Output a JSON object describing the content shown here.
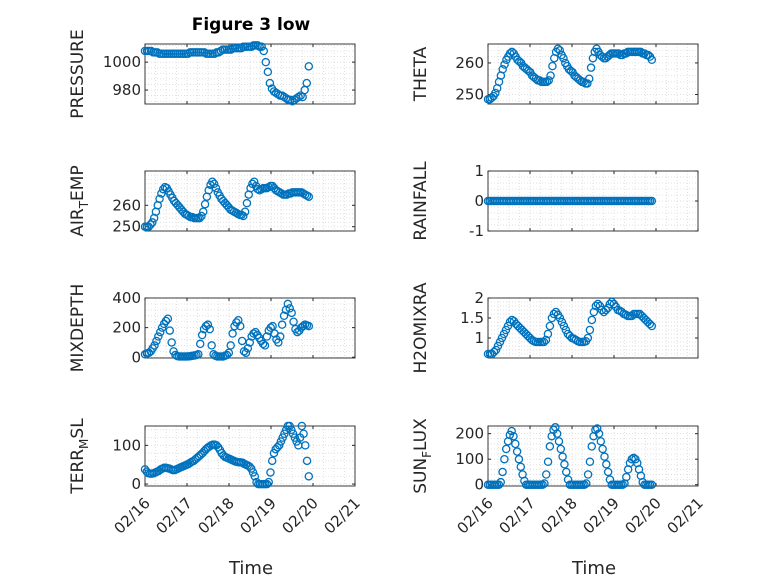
{
  "title": "Figure 3 low",
  "xlabel": "Time",
  "x_tick_labels": [
    "02/16",
    "02/17",
    "02/18",
    "02/19",
    "02/20",
    "02/21"
  ],
  "colors": {
    "marker": "#0072bd",
    "axis": "#262626",
    "grid": "#d6d6d6"
  },
  "chart_data": [
    {
      "type": "scatter",
      "id": "pressure",
      "ylabel": "PRESSURE",
      "ylim": [
        970,
        1013
      ],
      "yticks": [
        980,
        1000
      ],
      "yticklabels": [
        "980",
        "1000"
      ],
      "xlim": [
        16,
        21
      ],
      "x_range": [
        16,
        19.9
      ],
      "values": [
        1008,
        1008,
        1008,
        1008,
        1007,
        1007,
        1007,
        1006,
        1006,
        1006,
        1006,
        1006,
        1006,
        1006,
        1006,
        1006,
        1006,
        1006,
        1006,
        1006,
        1006,
        1006,
        1007,
        1007,
        1007,
        1007,
        1007,
        1007,
        1007,
        1007,
        1006,
        1006,
        1006,
        1006,
        1006,
        1007,
        1007,
        1008,
        1009,
        1009,
        1009,
        1009,
        1009,
        1010,
        1010,
        1010,
        1010,
        1010,
        1011,
        1011,
        1011,
        1011,
        1011,
        1012,
        1012,
        1012,
        1011,
        1011,
        1008,
        1000,
        993,
        985,
        981,
        979,
        978,
        977,
        976,
        976,
        975,
        974,
        973,
        973,
        972,
        973,
        974,
        975,
        976,
        975,
        980,
        985,
        997
      ]
    },
    {
      "type": "scatter",
      "id": "theta",
      "ylabel": "THETA",
      "ylim": [
        247,
        266
      ],
      "yticks": [
        250,
        260
      ],
      "yticklabels": [
        "250",
        "260"
      ],
      "xlim": [
        16,
        21
      ],
      "x_range": [
        16,
        19.9
      ],
      "values": [
        248.5,
        248.5,
        249,
        249.5,
        250.5,
        252,
        254,
        256,
        258,
        259.5,
        261,
        262,
        263,
        263.5,
        263,
        262,
        261,
        260.5,
        260,
        259,
        258.5,
        258,
        257.5,
        257,
        256,
        255.5,
        255,
        254.5,
        254.5,
        254,
        254,
        254,
        254,
        254.5,
        256,
        259,
        261.5,
        263.5,
        264.5,
        264,
        262.5,
        261.5,
        260,
        259,
        258,
        257.5,
        257,
        256,
        255.5,
        255,
        254.5,
        254,
        254,
        253.5,
        253.5,
        255,
        258.5,
        261.5,
        263.5,
        264.5,
        263.5,
        262.5,
        262,
        261.5,
        261.5,
        262,
        262.5,
        263,
        263,
        263,
        263,
        263,
        262.5,
        262.5,
        263,
        263,
        263.5,
        263.5,
        263.5,
        263.5,
        263.5,
        263.5,
        263.5,
        263.5,
        263,
        263,
        262.5,
        262.5,
        262,
        261
      ]
    },
    {
      "type": "scatter",
      "id": "air_temp",
      "ylabel": "AIR_TEMP",
      "ylim": [
        248,
        276
      ],
      "yticks": [
        250,
        260
      ],
      "yticklabels": [
        "250",
        "260"
      ],
      "xlim": [
        16,
        21
      ],
      "x_range": [
        16,
        19.9
      ],
      "values": [
        250,
        250,
        250,
        251,
        252,
        254,
        257,
        260,
        263,
        265.5,
        267.5,
        268.5,
        268,
        266.5,
        265,
        263.5,
        262,
        261,
        260,
        259,
        258,
        257,
        256,
        255.5,
        255,
        254.5,
        254.5,
        254,
        254,
        254,
        254,
        255,
        257,
        260.5,
        264,
        267,
        269.5,
        271,
        270,
        268,
        266,
        264.5,
        263,
        262,
        261,
        260,
        259,
        258,
        257.5,
        257,
        256.5,
        256,
        255.5,
        255.5,
        255,
        257,
        261,
        265,
        268,
        270,
        271,
        269,
        267.5,
        267,
        267.5,
        268,
        268,
        268,
        268.5,
        269,
        269,
        268,
        267,
        266.5,
        266,
        265.5,
        265,
        265,
        265,
        265.5,
        265.5,
        266,
        266,
        266,
        266,
        266,
        266,
        265.5,
        265,
        264.5,
        264
      ]
    },
    {
      "type": "scatter",
      "id": "rainfall",
      "ylabel": "RAINFALL",
      "ylim": [
        -1,
        1
      ],
      "yticks": [
        -1,
        0,
        1
      ],
      "yticklabels": [
        "-1",
        "0",
        "1"
      ],
      "xlim": [
        16,
        21
      ],
      "x_range": [
        16,
        19.9
      ],
      "values": [
        0,
        0,
        0,
        0,
        0,
        0,
        0,
        0,
        0,
        0,
        0,
        0,
        0,
        0,
        0,
        0,
        0,
        0,
        0,
        0,
        0,
        0,
        0,
        0,
        0,
        0,
        0,
        0,
        0,
        0,
        0,
        0,
        0,
        0,
        0,
        0,
        0,
        0,
        0,
        0,
        0,
        0,
        0,
        0,
        0,
        0,
        0,
        0,
        0,
        0,
        0,
        0,
        0,
        0,
        0,
        0,
        0,
        0,
        0,
        0,
        0,
        0,
        0,
        0,
        0,
        0,
        0,
        0,
        0,
        0,
        0,
        0,
        0,
        0,
        0,
        0,
        0,
        0,
        0,
        0,
        0,
        0,
        0,
        0,
        0,
        0,
        0,
        0,
        0,
        0,
        0,
        0,
        0,
        0
      ]
    },
    {
      "type": "scatter",
      "id": "mixdepth",
      "ylabel": "MIXDEPTH",
      "ylim": [
        -5,
        400
      ],
      "yticks": [
        0,
        200,
        400
      ],
      "yticklabels": [
        "0",
        "200",
        "400"
      ],
      "xlim": [
        16,
        21
      ],
      "x_range": [
        16,
        19.9
      ],
      "values": [
        20,
        25,
        30,
        40,
        60,
        80,
        110,
        140,
        170,
        200,
        225,
        245,
        260,
        180,
        100,
        40,
        15,
        8,
        5,
        5,
        5,
        5,
        5,
        6,
        8,
        10,
        12,
        15,
        20,
        90,
        150,
        190,
        210,
        220,
        190,
        80,
        20,
        10,
        5,
        5,
        5,
        5,
        10,
        15,
        30,
        80,
        160,
        210,
        235,
        250,
        210,
        110,
        40,
        30,
        60,
        100,
        140,
        160,
        170,
        150,
        130,
        110,
        90,
        80,
        140,
        180,
        200,
        210,
        160,
        120,
        100,
        140,
        220,
        280,
        320,
        360,
        330,
        300,
        240,
        190,
        170,
        180,
        200,
        210,
        220,
        215,
        210
      ]
    },
    {
      "type": "scatter",
      "id": "h2omixra",
      "ylabel": "H2OMIXRA",
      "ylim": [
        0.5,
        2
      ],
      "yticks": [
        1,
        1.5,
        2
      ],
      "yticklabels": [
        "1",
        "1.5",
        "2"
      ],
      "xlim": [
        16,
        21
      ],
      "x_range": [
        16,
        19.9
      ],
      "values": [
        0.6,
        0.6,
        0.6,
        0.65,
        0.7,
        0.8,
        0.9,
        1.0,
        1.1,
        1.2,
        1.3,
        1.4,
        1.45,
        1.42,
        1.35,
        1.3,
        1.25,
        1.2,
        1.15,
        1.1,
        1.05,
        1.0,
        0.95,
        0.92,
        0.9,
        0.9,
        0.9,
        0.9,
        0.9,
        0.95,
        1.1,
        1.3,
        1.5,
        1.6,
        1.65,
        1.58,
        1.5,
        1.4,
        1.3,
        1.2,
        1.1,
        1.05,
        1.0,
        0.98,
        0.95,
        0.92,
        0.9,
        0.9,
        0.9,
        0.92,
        1.0,
        1.2,
        1.45,
        1.65,
        1.8,
        1.85,
        1.8,
        1.7,
        1.65,
        1.7,
        1.75,
        1.85,
        1.9,
        1.85,
        1.78,
        1.7,
        1.68,
        1.65,
        1.6,
        1.58,
        1.55,
        1.55,
        1.55,
        1.6,
        1.6,
        1.6,
        1.6,
        1.55,
        1.5,
        1.45,
        1.4,
        1.35,
        1.3
      ]
    },
    {
      "type": "scatter",
      "id": "terr_msl",
      "ylabel": "TERR_MSL",
      "ylim": [
        -5,
        150
      ],
      "yticks": [
        0,
        100
      ],
      "yticklabels": [
        "0",
        "100"
      ],
      "xlim": [
        16,
        21
      ],
      "x_range": [
        16,
        19.9
      ],
      "values": [
        38,
        32,
        28,
        27,
        27,
        28,
        30,
        32,
        34,
        38,
        40,
        42,
        42,
        41,
        40,
        38,
        36,
        36,
        38,
        40,
        42,
        44,
        46,
        48,
        50,
        52,
        55,
        58,
        60,
        64,
        68,
        72,
        76,
        80,
        85,
        90,
        94,
        97,
        100,
        102,
        102,
        100,
        95,
        88,
        80,
        74,
        70,
        68,
        66,
        64,
        62,
        60,
        58,
        57,
        56,
        56,
        55,
        52,
        50,
        48,
        45,
        40,
        30,
        20,
        5,
        0,
        0,
        0,
        0,
        0,
        0,
        5,
        30,
        60,
        80,
        90,
        95,
        100,
        110,
        120,
        130,
        140,
        150,
        150,
        140,
        130,
        120,
        110,
        100,
        120,
        150,
        130,
        100,
        60,
        20
      ]
    },
    {
      "type": "scatter",
      "id": "sun_flux",
      "ylabel": "SUN_FLUX",
      "ylim": [
        -5,
        230
      ],
      "yticks": [
        0,
        100,
        200
      ],
      "yticklabels": [
        "0",
        "100",
        "200"
      ],
      "xlim": [
        16,
        21
      ],
      "x_range": [
        16,
        19.9
      ],
      "values": [
        0,
        0,
        0,
        0,
        0,
        0,
        0,
        10,
        50,
        100,
        140,
        170,
        195,
        210,
        190,
        160,
        130,
        100,
        70,
        40,
        15,
        0,
        0,
        0,
        0,
        0,
        0,
        0,
        0,
        0,
        0,
        5,
        40,
        90,
        150,
        190,
        215,
        225,
        200,
        170,
        140,
        110,
        80,
        50,
        20,
        0,
        0,
        0,
        0,
        0,
        0,
        0,
        0,
        0,
        5,
        40,
        90,
        150,
        190,
        215,
        220,
        200,
        170,
        140,
        110,
        80,
        50,
        20,
        0,
        0,
        0,
        0,
        0,
        0,
        0,
        5,
        30,
        60,
        85,
        100,
        105,
        100,
        85,
        60,
        35,
        10,
        0,
        0,
        0,
        0,
        0
      ]
    }
  ]
}
